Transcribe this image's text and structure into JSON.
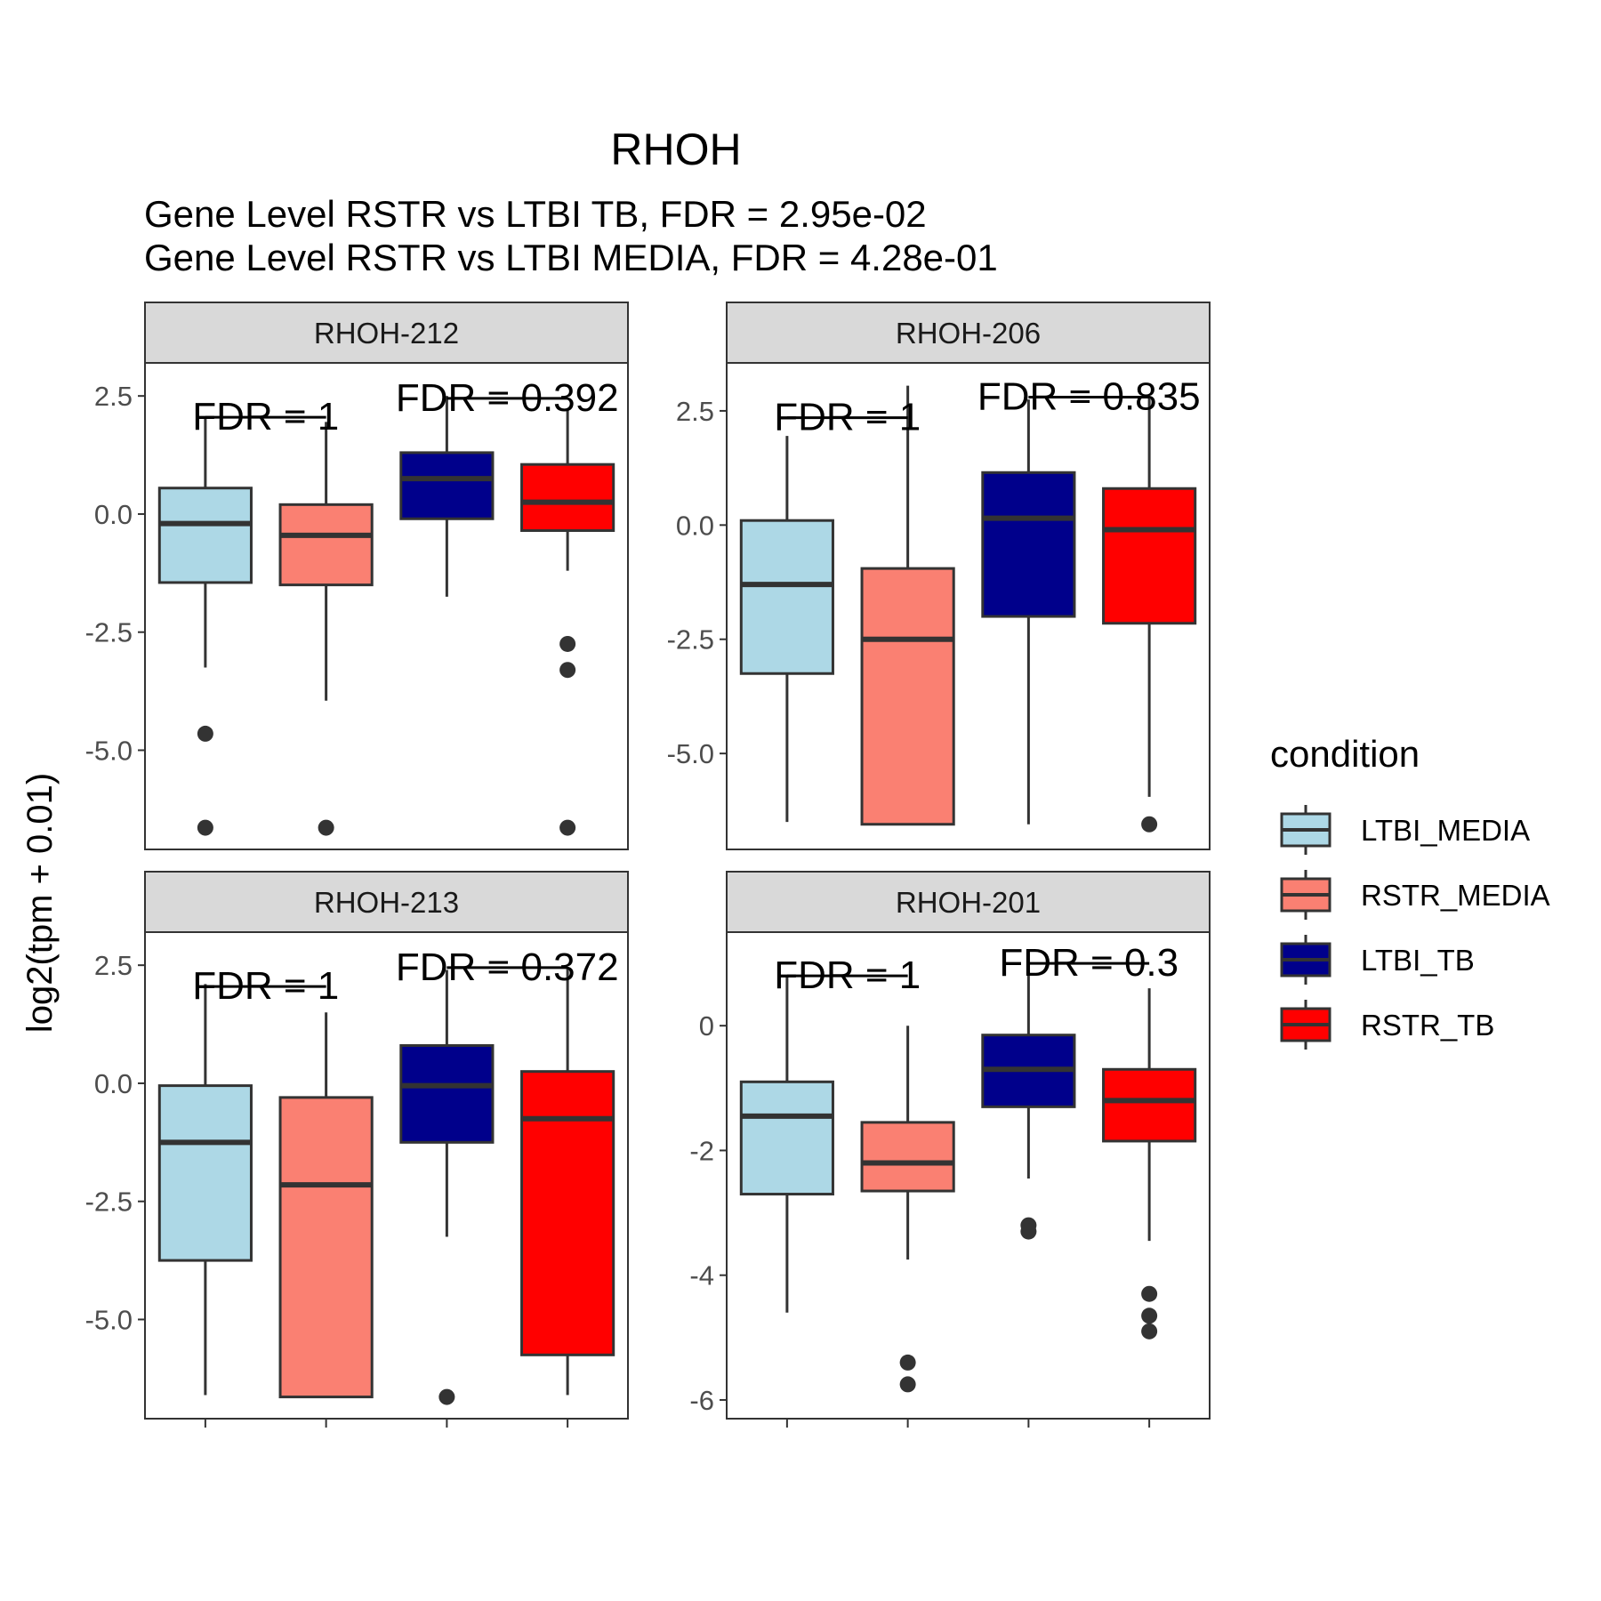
{
  "chart_data": {
    "type": "box",
    "title": "RHOH",
    "subtitle_lines": [
      "Gene Level RSTR vs LTBI TB, FDR =  2.95e-02",
      "Gene Level RSTR vs LTBI MEDIA, FDR =  4.28e-01"
    ],
    "ylabel": "log2(tpm + 0.01)",
    "xlabel": "",
    "legend": {
      "title": "condition",
      "position": "right",
      "items": [
        {
          "name": "LTBI_MEDIA",
          "color": "#add8e6"
        },
        {
          "name": "RSTR_MEDIA",
          "color": "#fa8072"
        },
        {
          "name": "LTBI_TB",
          "color": "#00008b"
        },
        {
          "name": "RSTR_TB",
          "color": "#ff0000"
        }
      ]
    },
    "grid": false,
    "panels": [
      {
        "name": "RHOH-212",
        "ylim": [
          -7.1,
          3.2
        ],
        "yticks": [
          2.5,
          0.0,
          -2.5,
          -5.0
        ],
        "ytick_labels": [
          "2.5",
          "0.0",
          "-2.5",
          "-5.0"
        ],
        "boxes": [
          {
            "group": "LTBI_MEDIA",
            "whisker_low": -3.25,
            "q1": -1.45,
            "median": -0.2,
            "q3": 0.55,
            "whisker_high": 2.05,
            "outliers": [
              -4.65,
              -6.64
            ]
          },
          {
            "group": "RSTR_MEDIA",
            "whisker_low": -3.95,
            "q1": -1.5,
            "median": -0.45,
            "q3": 0.2,
            "whisker_high": 1.95,
            "outliers": [
              -6.64
            ]
          },
          {
            "group": "LTBI_TB",
            "whisker_low": -1.75,
            "q1": -0.1,
            "median": 0.75,
            "q3": 1.3,
            "whisker_high": 2.5,
            "outliers": []
          },
          {
            "group": "RSTR_TB",
            "whisker_low": -1.2,
            "q1": -0.35,
            "median": 0.25,
            "q3": 1.05,
            "whisker_high": 2.2,
            "outliers": [
              -2.75,
              -3.3,
              -6.64
            ]
          }
        ],
        "annotations": [
          {
            "label": "FDR =  1",
            "between": [
              0,
              1
            ],
            "y": 2.05
          },
          {
            "label": "FDR =  0.392",
            "between": [
              2,
              3
            ],
            "y": 2.45
          }
        ]
      },
      {
        "name": "RHOH-206",
        "ylim": [
          -7.1,
          3.55
        ],
        "yticks": [
          2.5,
          0.0,
          -2.5,
          -5.0
        ],
        "ytick_labels": [
          "2.5",
          "0.0",
          "-2.5",
          "-5.0"
        ],
        "boxes": [
          {
            "group": "LTBI_MEDIA",
            "whisker_low": -6.5,
            "q1": -3.25,
            "median": -1.3,
            "q3": 0.1,
            "whisker_high": 1.95,
            "outliers": []
          },
          {
            "group": "RSTR_MEDIA",
            "whisker_low": -6.55,
            "q1": -6.55,
            "median": -2.5,
            "q3": -0.95,
            "whisker_high": 3.05,
            "outliers": []
          },
          {
            "group": "LTBI_TB",
            "whisker_low": -6.55,
            "q1": -2.0,
            "median": 0.15,
            "q3": 1.15,
            "whisker_high": 2.75,
            "outliers": []
          },
          {
            "group": "RSTR_TB",
            "whisker_low": -5.95,
            "q1": -2.15,
            "median": -0.1,
            "q3": 0.8,
            "whisker_high": 2.8,
            "outliers": [
              -6.55
            ]
          }
        ],
        "annotations": [
          {
            "label": "FDR =  1",
            "between": [
              0,
              1
            ],
            "y": 2.35
          },
          {
            "label": "FDR =  0.835",
            "between": [
              2,
              3
            ],
            "y": 2.8
          }
        ]
      },
      {
        "name": "RHOH-213",
        "ylim": [
          -7.1,
          3.2
        ],
        "yticks": [
          2.5,
          0.0,
          -2.5,
          -5.0
        ],
        "ytick_labels": [
          "2.5",
          "0.0",
          "-2.5",
          "-5.0"
        ],
        "boxes": [
          {
            "group": "LTBI_MEDIA",
            "whisker_low": -6.6,
            "q1": -3.75,
            "median": -1.25,
            "q3": -0.05,
            "whisker_high": 2.1,
            "outliers": []
          },
          {
            "group": "RSTR_MEDIA",
            "whisker_low": -6.64,
            "q1": -6.64,
            "median": -2.15,
            "q3": -0.3,
            "whisker_high": 1.5,
            "outliers": []
          },
          {
            "group": "LTBI_TB",
            "whisker_low": -3.25,
            "q1": -1.25,
            "median": -0.05,
            "q3": 0.8,
            "whisker_high": 2.4,
            "outliers": [
              -6.64
            ]
          },
          {
            "group": "RSTR_TB",
            "whisker_low": -6.6,
            "q1": -5.75,
            "median": -0.75,
            "q3": 0.25,
            "whisker_high": 2.45,
            "outliers": []
          }
        ],
        "annotations": [
          {
            "label": "FDR =  1",
            "between": [
              0,
              1
            ],
            "y": 2.05
          },
          {
            "label": "FDR =  0.372",
            "between": [
              2,
              3
            ],
            "y": 2.45
          }
        ]
      },
      {
        "name": "RHOH-201",
        "ylim": [
          -6.3,
          1.5
        ],
        "yticks": [
          0,
          -2,
          -4,
          -6
        ],
        "ytick_labels": [
          "0",
          "-2",
          "-4",
          "-6"
        ],
        "boxes": [
          {
            "group": "LTBI_MEDIA",
            "whisker_low": -4.6,
            "q1": -2.7,
            "median": -1.45,
            "q3": -0.9,
            "whisker_high": 0.8,
            "outliers": []
          },
          {
            "group": "RSTR_MEDIA",
            "whisker_low": -3.75,
            "q1": -2.65,
            "median": -2.2,
            "q3": -1.55,
            "whisker_high": 0.0,
            "outliers": [
              -5.4,
              -5.75
            ]
          },
          {
            "group": "LTBI_TB",
            "whisker_low": -2.45,
            "q1": -1.3,
            "median": -0.7,
            "q3": -0.15,
            "whisker_high": 1.0,
            "outliers": [
              -3.2,
              -3.3
            ]
          },
          {
            "group": "RSTR_TB",
            "whisker_low": -3.45,
            "q1": -1.85,
            "median": -1.2,
            "q3": -0.7,
            "whisker_high": 0.6,
            "outliers": [
              -4.3,
              -4.65,
              -4.9
            ]
          }
        ],
        "annotations": [
          {
            "label": "FDR =  1",
            "between": [
              0,
              1
            ],
            "y": 0.8
          },
          {
            "label": "FDR =  0.3",
            "between": [
              2,
              3
            ],
            "y": 1.0
          }
        ]
      }
    ]
  }
}
